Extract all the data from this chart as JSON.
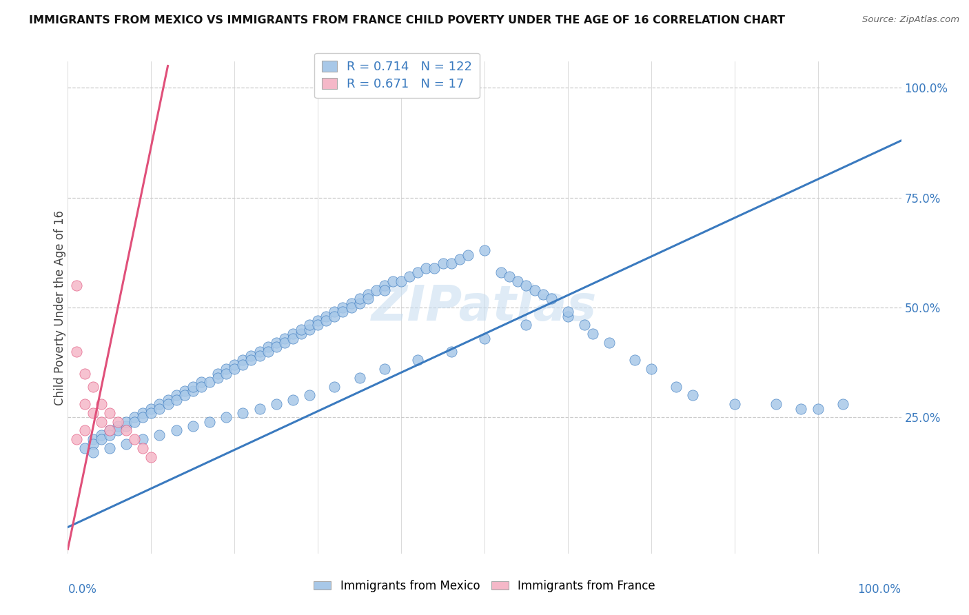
{
  "title": "IMMIGRANTS FROM MEXICO VS IMMIGRANTS FROM FRANCE CHILD POVERTY UNDER THE AGE OF 16 CORRELATION CHART",
  "source": "Source: ZipAtlas.com",
  "ylabel": "Child Poverty Under the Age of 16",
  "watermark": "ZIPatlas",
  "mexico_R": 0.714,
  "mexico_N": 122,
  "france_R": 0.671,
  "france_N": 17,
  "mexico_color": "#a8c8e8",
  "france_color": "#f5b8c8",
  "mexico_line_color": "#3a7abf",
  "france_line_color": "#e0507a",
  "background_color": "#ffffff",
  "mexico_scatter_x": [
    0.02,
    0.03,
    0.03,
    0.04,
    0.04,
    0.05,
    0.05,
    0.06,
    0.06,
    0.07,
    0.07,
    0.08,
    0.08,
    0.09,
    0.09,
    0.1,
    0.1,
    0.11,
    0.11,
    0.12,
    0.12,
    0.13,
    0.13,
    0.14,
    0.14,
    0.15,
    0.15,
    0.16,
    0.16,
    0.17,
    0.18,
    0.18,
    0.19,
    0.19,
    0.2,
    0.2,
    0.21,
    0.21,
    0.22,
    0.22,
    0.23,
    0.23,
    0.24,
    0.24,
    0.25,
    0.25,
    0.26,
    0.26,
    0.27,
    0.27,
    0.28,
    0.28,
    0.29,
    0.29,
    0.3,
    0.3,
    0.31,
    0.31,
    0.32,
    0.32,
    0.33,
    0.33,
    0.34,
    0.34,
    0.35,
    0.35,
    0.36,
    0.36,
    0.37,
    0.38,
    0.38,
    0.39,
    0.4,
    0.41,
    0.42,
    0.43,
    0.44,
    0.45,
    0.46,
    0.47,
    0.48,
    0.5,
    0.52,
    0.53,
    0.54,
    0.55,
    0.56,
    0.57,
    0.58,
    0.6,
    0.62,
    0.63,
    0.65,
    0.68,
    0.7,
    0.73,
    0.75,
    0.8,
    0.85,
    0.88,
    0.9,
    0.93,
    0.03,
    0.05,
    0.07,
    0.09,
    0.11,
    0.13,
    0.15,
    0.17,
    0.19,
    0.21,
    0.23,
    0.25,
    0.27,
    0.29,
    0.32,
    0.35,
    0.38,
    0.42,
    0.46,
    0.5,
    0.55,
    0.6
  ],
  "mexico_scatter_y": [
    0.18,
    0.2,
    0.19,
    0.21,
    0.2,
    0.22,
    0.21,
    0.23,
    0.22,
    0.23,
    0.24,
    0.25,
    0.24,
    0.26,
    0.25,
    0.27,
    0.26,
    0.28,
    0.27,
    0.29,
    0.28,
    0.3,
    0.29,
    0.31,
    0.3,
    0.31,
    0.32,
    0.33,
    0.32,
    0.33,
    0.35,
    0.34,
    0.36,
    0.35,
    0.37,
    0.36,
    0.38,
    0.37,
    0.39,
    0.38,
    0.4,
    0.39,
    0.41,
    0.4,
    0.42,
    0.41,
    0.43,
    0.42,
    0.44,
    0.43,
    0.44,
    0.45,
    0.45,
    0.46,
    0.47,
    0.46,
    0.48,
    0.47,
    0.49,
    0.48,
    0.5,
    0.49,
    0.51,
    0.5,
    0.51,
    0.52,
    0.53,
    0.52,
    0.54,
    0.55,
    0.54,
    0.56,
    0.56,
    0.57,
    0.58,
    0.59,
    0.59,
    0.6,
    0.6,
    0.61,
    0.62,
    0.63,
    0.58,
    0.57,
    0.56,
    0.55,
    0.54,
    0.53,
    0.52,
    0.48,
    0.46,
    0.44,
    0.42,
    0.38,
    0.36,
    0.32,
    0.3,
    0.28,
    0.28,
    0.27,
    0.27,
    0.28,
    0.17,
    0.18,
    0.19,
    0.2,
    0.21,
    0.22,
    0.23,
    0.24,
    0.25,
    0.26,
    0.27,
    0.28,
    0.29,
    0.3,
    0.32,
    0.34,
    0.36,
    0.38,
    0.4,
    0.43,
    0.46,
    0.49
  ],
  "france_scatter_x": [
    0.01,
    0.01,
    0.01,
    0.02,
    0.02,
    0.02,
    0.03,
    0.03,
    0.04,
    0.04,
    0.05,
    0.05,
    0.06,
    0.07,
    0.08,
    0.09,
    0.1
  ],
  "france_scatter_y": [
    0.55,
    0.4,
    0.2,
    0.35,
    0.28,
    0.22,
    0.32,
    0.26,
    0.28,
    0.24,
    0.22,
    0.26,
    0.24,
    0.22,
    0.2,
    0.18,
    0.16
  ],
  "mexico_line_x0": 0.0,
  "mexico_line_y0": 0.0,
  "mexico_line_x1": 1.0,
  "mexico_line_y1": 0.88,
  "france_line_x0": 0.0,
  "france_line_y0": -0.05,
  "france_line_x1": 0.12,
  "france_line_y1": 1.05,
  "xmin": 0.0,
  "xmax": 1.0,
  "ymin": -0.06,
  "ymax": 1.06
}
